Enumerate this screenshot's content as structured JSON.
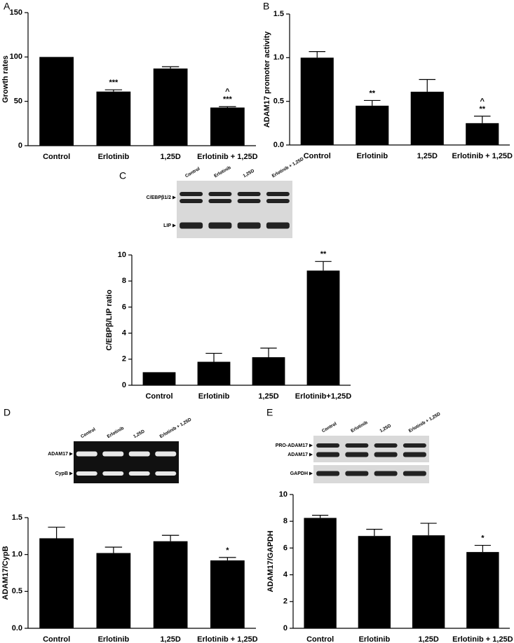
{
  "chart_data": [
    {
      "type": "bar",
      "panel": "A",
      "ylabel": "Growth rates",
      "categories": [
        "Control",
        "Erlotinib",
        "1,25D",
        "Erlotinib + 1,25D"
      ],
      "values": [
        100,
        61,
        87,
        43
      ],
      "errors": [
        0,
        2,
        2,
        1
      ],
      "color": "#000000",
      "annotations": [
        null,
        [
          "***"
        ],
        null,
        [
          "^",
          "***"
        ]
      ],
      "ylim": [
        0,
        150
      ],
      "yticks": [
        0,
        50,
        100,
        150
      ]
    },
    {
      "type": "bar",
      "panel": "B",
      "ylabel": "ADAM17 promoter activity",
      "categories": [
        "Control",
        "Erlotinib",
        "1,25D",
        "Erlotinib + 1,25D"
      ],
      "values": [
        1.0,
        0.45,
        0.61,
        0.25
      ],
      "errors": [
        0.07,
        0.06,
        0.14,
        0.08
      ],
      "color": "#000000",
      "annotations": [
        null,
        [
          "**"
        ],
        null,
        [
          "^",
          "**"
        ]
      ],
      "ylim": [
        0,
        1.5
      ],
      "yticks": [
        {
          "value": 0,
          "label": "0.0"
        },
        0.5,
        {
          "value": 1,
          "label": "1.0"
        },
        1.5
      ]
    },
    {
      "type": "bar",
      "panel": "C",
      "ylabel": "C/EBPβ/LIP ratio",
      "categories": [
        "Control",
        "Erlotinib",
        "1,25D",
        "Erlotinib+1,25D"
      ],
      "values": [
        1,
        1.8,
        2.15,
        8.8
      ],
      "errors": [
        0,
        0.65,
        0.7,
        0.7
      ],
      "color": "#000000",
      "annotations": [
        null,
        null,
        null,
        [
          "**"
        ]
      ],
      "ylim": [
        0,
        10
      ],
      "yticks": [
        0,
        2,
        4,
        6,
        8,
        10
      ]
    },
    {
      "type": "bar",
      "panel": "D",
      "ylabel": "ADAM17/CypB",
      "categories": [
        "Control",
        "Erlotinib",
        "1,25D",
        "Erlotinib + 1,25D"
      ],
      "values": [
        1.22,
        1.02,
        1.18,
        0.92
      ],
      "errors": [
        0.15,
        0.08,
        0.08,
        0.04
      ],
      "color": "#000000",
      "annotations": [
        null,
        null,
        null,
        [
          "*"
        ]
      ],
      "ylim": [
        0,
        1.5
      ],
      "yticks": [
        {
          "value": 0,
          "label": "0.0"
        },
        0.5,
        {
          "value": 1,
          "label": "1.0"
        },
        1.5
      ]
    },
    {
      "type": "bar",
      "panel": "E",
      "ylabel": "ADAM17/GAPDH",
      "categories": [
        "Control",
        "Erlotinib",
        "1,25D",
        "Erlotinib + 1,25D"
      ],
      "values": [
        8.25,
        6.9,
        6.95,
        5.7
      ],
      "errors": [
        0.2,
        0.5,
        0.9,
        0.5
      ],
      "color": "#000000",
      "annotations": [
        null,
        null,
        null,
        [
          "*"
        ]
      ],
      "ylim": [
        0,
        10
      ],
      "yticks": [
        0,
        2,
        4,
        6,
        8,
        10
      ]
    }
  ],
  "blots": [
    {
      "lanes": [
        "Control",
        "Erlotinib",
        "1,25D",
        "Erlotinib + 1,25D"
      ],
      "bands": [
        "C/EBPβ1/2",
        "LIP"
      ]
    },
    {
      "lanes": [
        "Control",
        "Erlotinib",
        "1,25D",
        "Erlotinib + 1,25D"
      ],
      "bands": [
        "ADAM17",
        "CypB"
      ]
    },
    {
      "lanes": [
        "Control",
        "Erlotinib",
        "1,25D",
        "Erlotinib + 1,25D"
      ],
      "bands": [
        "PRO-ADAM17",
        "ADAM17",
        "GAPDH"
      ]
    }
  ]
}
